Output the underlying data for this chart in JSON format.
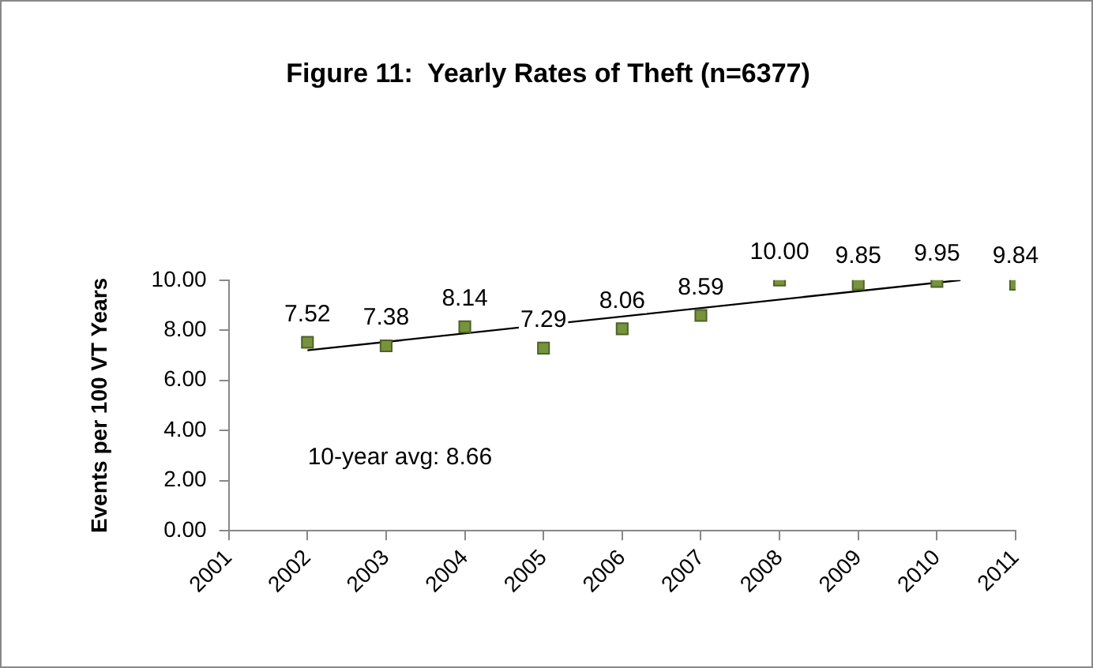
{
  "chart_data": {
    "type": "scatter",
    "title": "Figure 11:  Yearly Rates of Theft (n=6377)",
    "ylabel": "Events per 100 VT Years",
    "xlim": [
      2001,
      2011
    ],
    "xticks": [
      2001,
      2002,
      2003,
      2004,
      2005,
      2006,
      2007,
      2008,
      2009,
      2010,
      2011
    ],
    "ylim": [
      0,
      10
    ],
    "yticks": [
      {
        "value": 0,
        "label": "0.00"
      },
      {
        "value": 2,
        "label": "2.00"
      },
      {
        "value": 4,
        "label": "4.00"
      },
      {
        "value": 6,
        "label": "6.00"
      },
      {
        "value": 8,
        "label": "8.00"
      },
      {
        "value": 10,
        "label": "10.00"
      }
    ],
    "grid": false,
    "legend": false,
    "series": [
      {
        "color": "#77933c",
        "marker": "square",
        "x": [
          2002,
          2003,
          2004,
          2005,
          2006,
          2007,
          2008,
          2009,
          2010,
          2011
        ],
        "values": [
          7.52,
          7.38,
          8.14,
          7.29,
          8.06,
          8.59,
          10.0,
          9.85,
          9.95,
          9.84
        ],
        "value_labels": [
          "7.52",
          "7.38",
          "8.14",
          "7.29",
          "8.06",
          "8.59",
          "10.00",
          "9.85",
          "9.95",
          "9.84"
        ]
      },
      {
        "type": "line",
        "marker": "none",
        "color": "#000000",
        "x": [
          2002,
          2010.3
        ],
        "values": [
          7.2,
          10.0
        ],
        "line_style": "solid"
      }
    ],
    "annotations": [
      "10-year avg: 8.66"
    ]
  }
}
